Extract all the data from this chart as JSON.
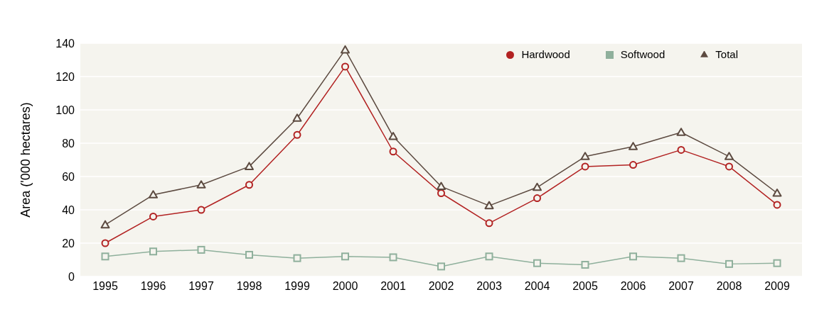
{
  "chart_data": {
    "type": "line",
    "ylabel": "Area ('000 hectares)",
    "categories": [
      "1995",
      "1996",
      "1997",
      "1998",
      "1999",
      "2000",
      "2001",
      "2002",
      "2003",
      "2004",
      "2005",
      "2006",
      "2007",
      "2008",
      "2009"
    ],
    "series": [
      {
        "name": "Hardwood",
        "color": "#b22222",
        "marker": "circle",
        "values": [
          20,
          36,
          40,
          55,
          85,
          126,
          75,
          50,
          32,
          47,
          66,
          67,
          76,
          66,
          43
        ]
      },
      {
        "name": "Softwood",
        "color": "#8fb09c",
        "marker": "square",
        "values": [
          12,
          15,
          16,
          13,
          11,
          12,
          11.5,
          6,
          12,
          8,
          7,
          12,
          11,
          7.5,
          8
        ]
      },
      {
        "name": "Total",
        "color": "#5c4a40",
        "marker": "triangle",
        "values": [
          31,
          49,
          55,
          66,
          95,
          136,
          84,
          54,
          42.5,
          53.5,
          72,
          78,
          86.5,
          72,
          50
        ]
      }
    ],
    "ylim": [
      0,
      140
    ],
    "yticks": [
      0,
      20,
      40,
      60,
      80,
      100,
      120,
      140
    ],
    "grid": "y",
    "legend": "top right"
  }
}
